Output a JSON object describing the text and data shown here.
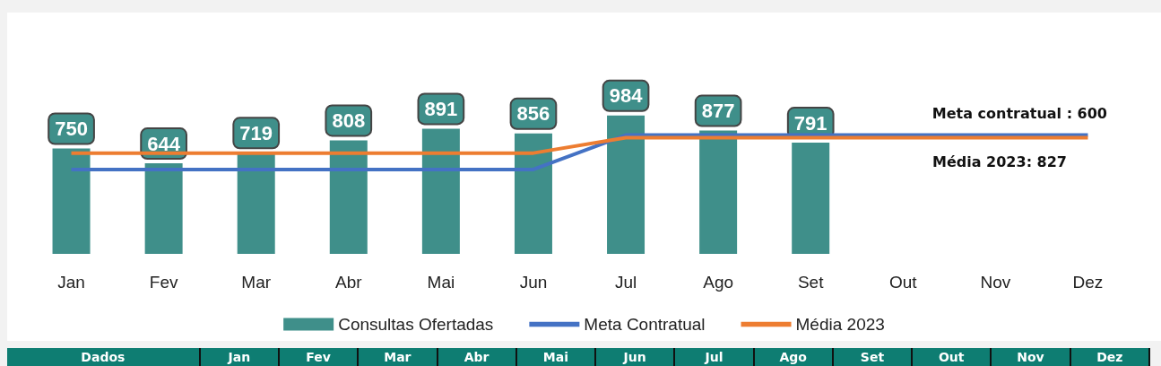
{
  "chart_data": {
    "type": "bar",
    "categories": [
      "Jan",
      "Fev",
      "Mar",
      "Abr",
      "Mai",
      "Jun",
      "Jul",
      "Ago",
      "Set",
      "Out",
      "Nov",
      "Dez"
    ],
    "series": [
      {
        "name": "Consultas Ofertadas",
        "color": "#3f8f8a",
        "values": [
          750,
          644,
          719,
          808,
          891,
          856,
          984,
          877,
          791,
          null,
          null,
          null
        ],
        "value_labels": [
          "750",
          "644",
          "719",
          "808",
          "891",
          "856",
          "984",
          "877",
          "791",
          null,
          null,
          null
        ]
      },
      {
        "name": "Meta Contratual",
        "type": "line",
        "color": "#4472c4",
        "values": [
          600,
          600,
          600,
          600,
          600,
          600,
          845,
          845,
          845,
          845,
          845,
          845
        ]
      },
      {
        "name": "Média 2023",
        "type": "line",
        "color": "#ed7d31",
        "values": [
          717,
          717,
          717,
          717,
          717,
          717,
          827,
          827,
          827,
          827,
          827,
          827
        ]
      }
    ],
    "legend": "bottom",
    "marker": "none",
    "grid": false,
    "annotations": [
      "Meta contratual : 600",
      "Média 2023: 827",
      "Dados",
      "Jan",
      "Fev",
      "Mar",
      "Abr",
      "Mai",
      "Jun",
      "Jul",
      "Ago",
      "Set",
      "Out",
      "Nov",
      "Dez"
    ]
  }
}
